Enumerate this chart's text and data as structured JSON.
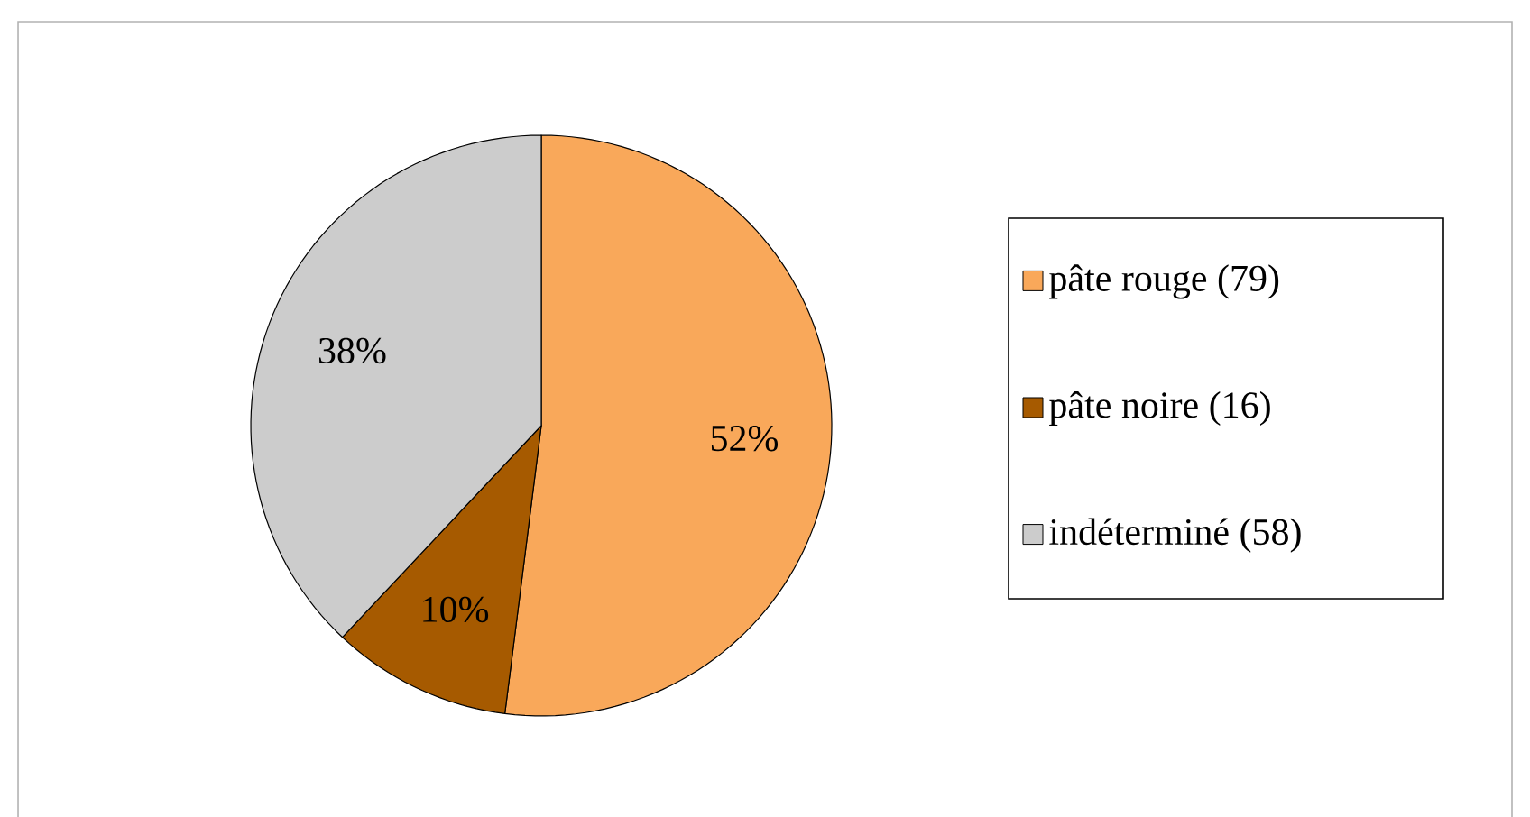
{
  "chart_data": {
    "type": "pie",
    "categories": [
      "pâte rouge (79)",
      "pâte noire (16)",
      "indéterminé (58)"
    ],
    "values": [
      52,
      10,
      38
    ],
    "colors": [
      "#f9a85a",
      "#a65a00",
      "#cccccc"
    ],
    "value_labels": [
      "52%",
      "10%",
      "38%"
    ],
    "legend": "right"
  }
}
